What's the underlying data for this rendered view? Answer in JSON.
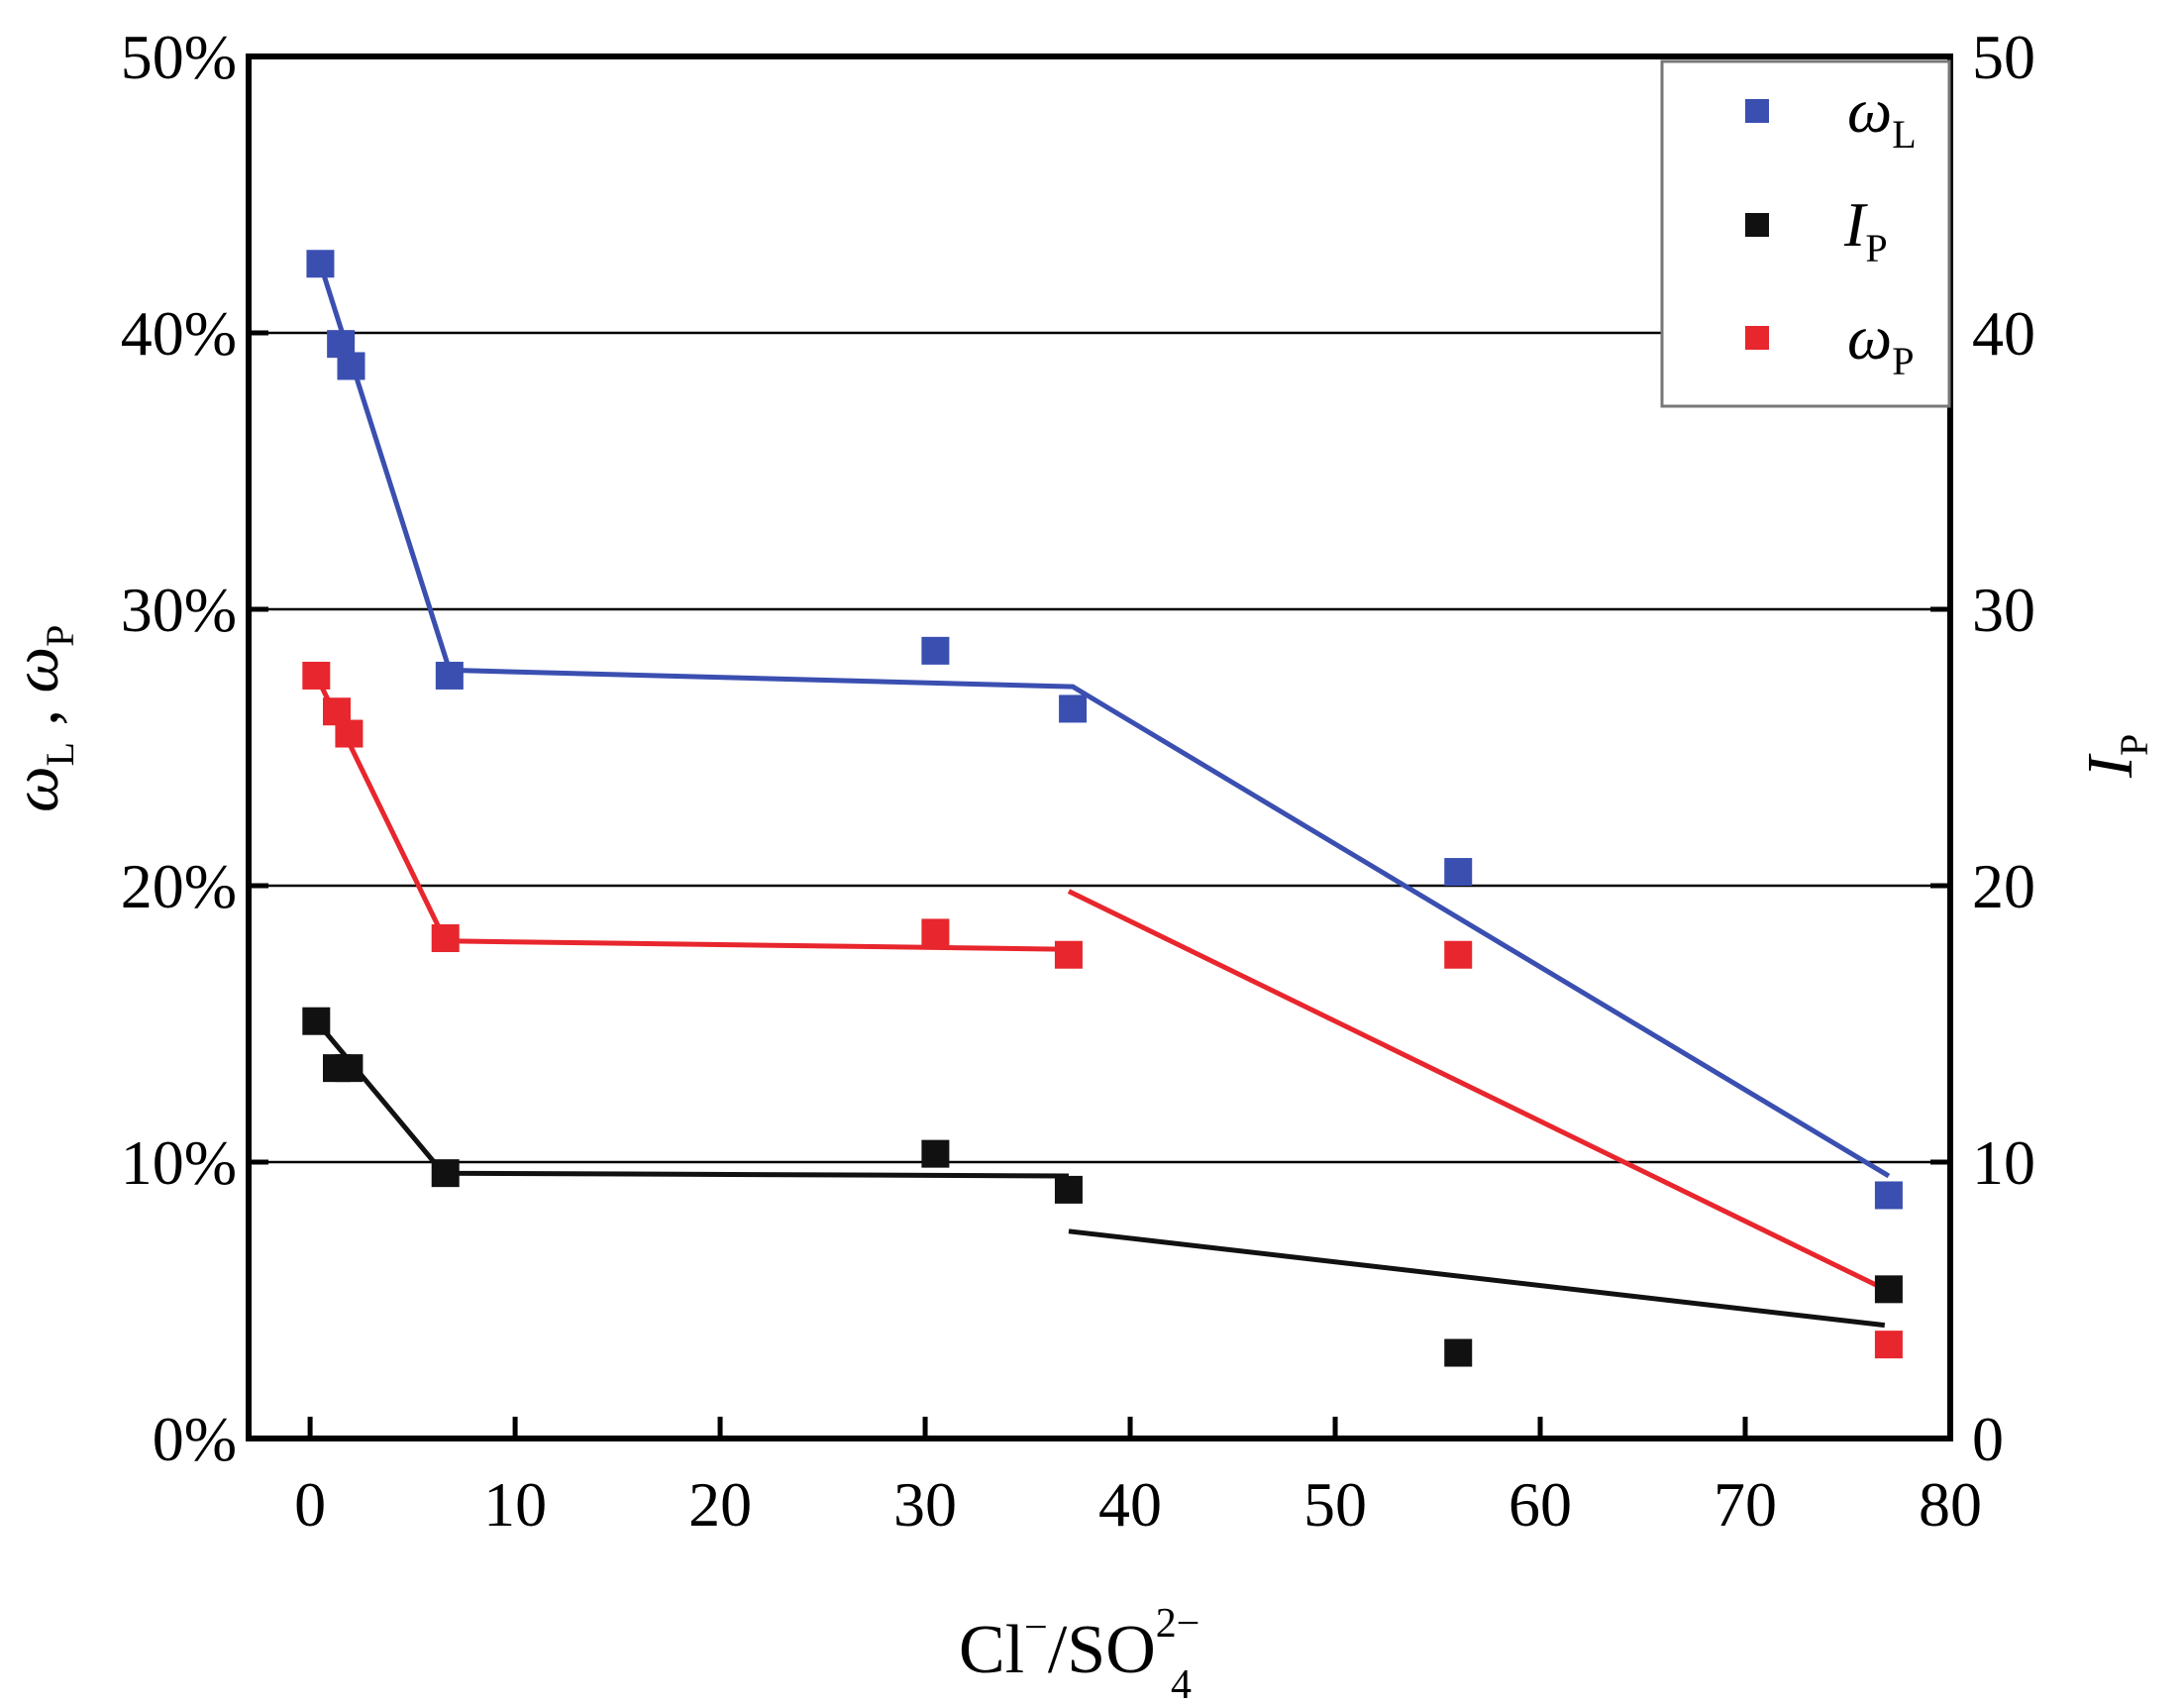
{
  "chart_data": {
    "type": "scatter",
    "xlabel_parts": {
      "base": "Cl",
      "base_sup": "−",
      "sep": "/SO",
      "sub": "4",
      "sup": "2−"
    },
    "ylabel_left_parts": {
      "w1": "ω",
      "s1": "L",
      "comma": " , ",
      "w2": "ω",
      "s2": "P"
    },
    "ylabel_right_parts": {
      "main": "I",
      "sub": "P"
    },
    "x_ticks": [
      "0",
      "10",
      "20",
      "30",
      "40",
      "50",
      "60",
      "70",
      "80"
    ],
    "y_left_ticks": [
      "0%",
      "10%",
      "20%",
      "30%",
      "40%",
      "50%"
    ],
    "y_right_ticks": [
      "0",
      "10",
      "20",
      "30",
      "40",
      "50"
    ],
    "xlim": [
      -3,
      80
    ],
    "ylim_left": [
      0,
      50
    ],
    "ylim_right": [
      0,
      50
    ],
    "grid": "horizontal",
    "legend_position": "top-right",
    "series": [
      {
        "key": "wL",
        "legend": {
          "main": "ω",
          "sub": "L"
        },
        "color": "#3a4fb0",
        "points": [
          [
            0.5,
            42.5
          ],
          [
            1.5,
            39.6
          ],
          [
            2.0,
            38.8
          ],
          [
            6.8,
            27.6
          ],
          [
            30.5,
            28.5
          ],
          [
            37.2,
            26.4
          ],
          [
            56.0,
            20.5
          ],
          [
            77.0,
            8.8
          ]
        ],
        "fit_lines": [
          [
            [
              0.5,
              42.5
            ],
            [
              6.8,
              27.8
            ],
            [
              37.2,
              27.2
            ],
            [
              77.0,
              9.5
            ]
          ]
        ]
      },
      {
        "key": "IP",
        "legend": {
          "main": "I",
          "sub": "P"
        },
        "color": "#111111",
        "points": [
          [
            0.3,
            15.1
          ],
          [
            1.3,
            13.4
          ],
          [
            1.9,
            13.4
          ],
          [
            6.6,
            9.6
          ],
          [
            30.5,
            10.3
          ],
          [
            37.0,
            9.0
          ],
          [
            56.0,
            3.1
          ],
          [
            77.0,
            5.4
          ]
        ],
        "fit_lines": [
          [
            [
              0.3,
              15.1
            ],
            [
              6.5,
              9.6
            ],
            [
              37.0,
              9.5
            ]
          ],
          [
            [
              37.0,
              7.5
            ],
            [
              76.8,
              4.1
            ]
          ]
        ]
      },
      {
        "key": "wP",
        "legend": {
          "main": "ω",
          "sub": "P"
        },
        "color": "#e8262d",
        "points": [
          [
            0.3,
            27.6
          ],
          [
            1.3,
            26.3
          ],
          [
            1.9,
            25.5
          ],
          [
            6.6,
            18.1
          ],
          [
            30.5,
            18.3
          ],
          [
            37.0,
            17.5
          ],
          [
            56.0,
            17.5
          ],
          [
            77.0,
            3.4
          ]
        ],
        "fit_lines": [
          [
            [
              0.3,
              27.6
            ],
            [
              6.6,
              18.0
            ],
            [
              37.0,
              17.7
            ]
          ],
          [
            [
              37.0,
              19.8
            ],
            [
              76.8,
              5.4
            ]
          ]
        ]
      }
    ]
  }
}
